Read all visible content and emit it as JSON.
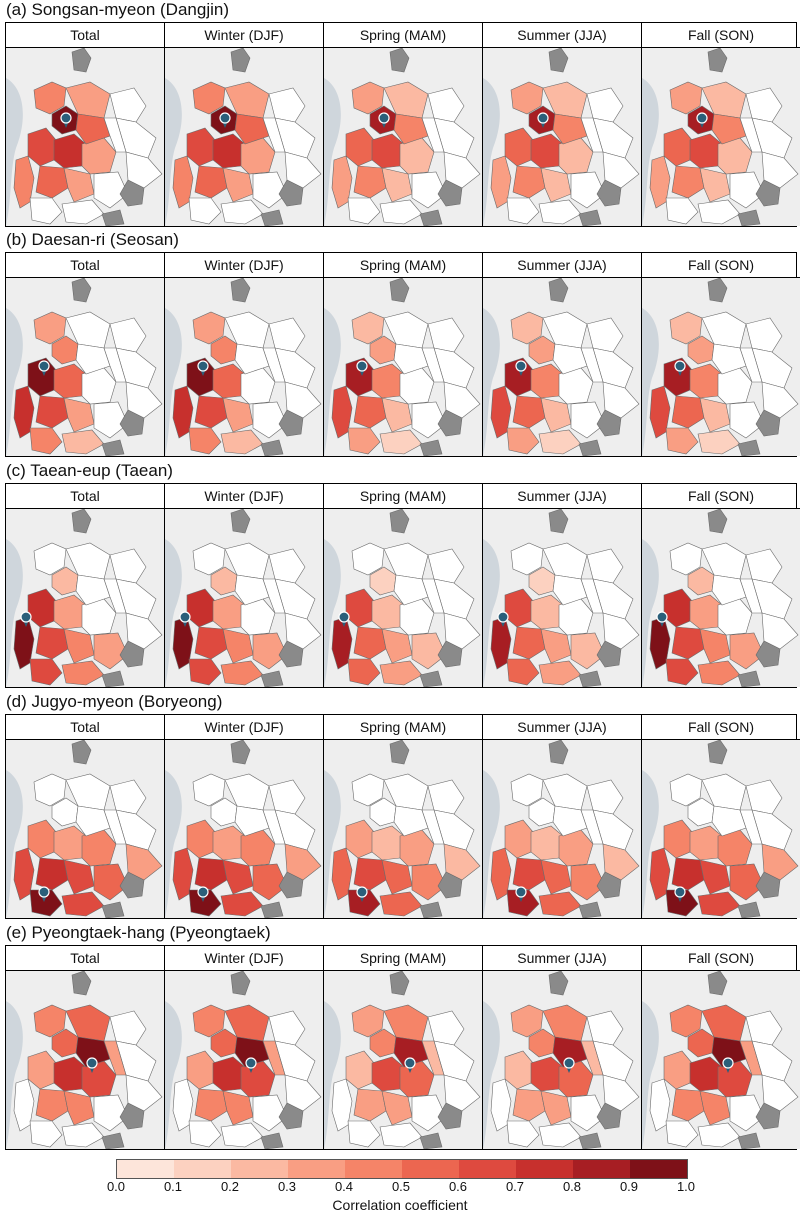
{
  "figure": {
    "panel_titles": [
      "Total",
      "Winter (DJF)",
      "Spring (MAM)",
      "Summer (JJA)",
      "Fall (SON)"
    ],
    "sections": [
      {
        "title": "(a) Songsan-myeon (Dangjin)",
        "source_location": "Songsan-myeon (Dangjin)"
      },
      {
        "title": "(b) Daesan-ri (Seosan)",
        "source_location": "Daesan-ri (Seosan)"
      },
      {
        "title": "(c) Taean-eup (Taean)",
        "source_location": "Taean-eup (Taean)"
      },
      {
        "title": "(d) Jugyo-myeon (Boryeong)",
        "source_location": "Jugyo-myeon (Boryeong)"
      },
      {
        "title": "(e) Pyeongtaek-hang (Pyeongtaek)",
        "source_location": "Pyeongtaek-hang (Pyeongtaek)"
      }
    ]
  },
  "legend": {
    "title": "Correlation coefficient",
    "ticks": [
      "0.0",
      "0.1",
      "0.2",
      "0.3",
      "0.4",
      "0.5",
      "0.6",
      "0.7",
      "0.8",
      "0.9",
      "1.0"
    ],
    "colors": [
      "#fde5da",
      "#fcd1c0",
      "#fbb9a2",
      "#f99e83",
      "#f58468",
      "#ec6650",
      "#de4a3f",
      "#c7302d",
      "#a71e23",
      "#7e1118"
    ],
    "no_data_color": "#8a8a8a"
  }
}
